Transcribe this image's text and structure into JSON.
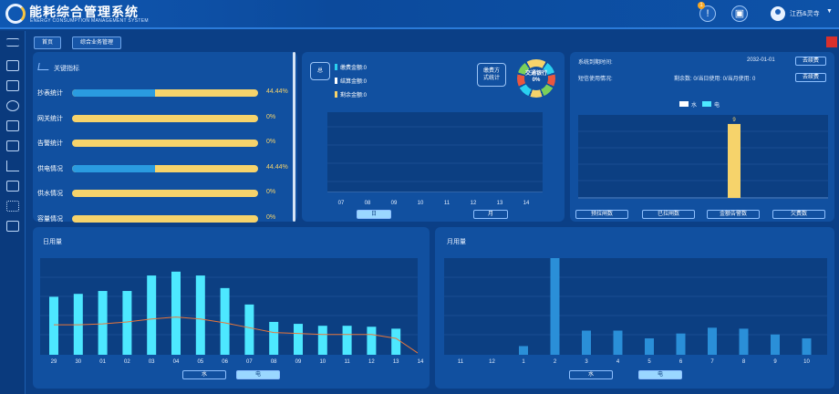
{
  "header": {
    "title": "能耗综合管理系统",
    "subtitle": "ENERGY CONSUMPTION MANAGEMENT SYSTEM",
    "notification_count": "1",
    "user_name": "江西&灵寺",
    "caret": "▼"
  },
  "breadcrumbs": [
    "首页",
    "综合业务管理"
  ],
  "kpi": {
    "title": "关键指标",
    "items": [
      {
        "label": "抄表统计",
        "value": 44.44,
        "pct": "44.44%"
      },
      {
        "label": "网关统计",
        "value": 0,
        "pct": "0%"
      },
      {
        "label": "告警统计",
        "value": 0,
        "pct": "0%"
      },
      {
        "label": "供电情况",
        "value": 44.44,
        "pct": "44.44%"
      },
      {
        "label": "供水情况",
        "value": 0,
        "pct": "0%"
      },
      {
        "label": "容量情况",
        "value": 0,
        "pct": "0%"
      }
    ]
  },
  "fee": {
    "total_label": "总",
    "lines": [
      {
        "text": "缴费金额:0",
        "color": "#2ad0f0"
      },
      {
        "text": "结算金额:0",
        "color": "#ffffff"
      },
      {
        "text": "剩余金额:0",
        "color": "#f6d36b"
      }
    ],
    "mode_label_1": "缴费方",
    "mode_label_2": "式统计",
    "donut_label": "交通银行",
    "donut_value": "0%",
    "x_ticks": [
      "07",
      "08",
      "09",
      "10",
      "11",
      "12",
      "13",
      "14"
    ],
    "tab_day": "日",
    "tab_month": "月"
  },
  "sys": {
    "expire_label": "系统到期时间:",
    "expire_date": "2032-01-01",
    "renew_label": "去续费",
    "sms_label": "短信使用情况:",
    "sms_stats": "剩余数: 0/当日使用: 0/当月使用: 0",
    "sms_renew": "去续费",
    "legend_water": "水",
    "legend_elec": "电",
    "buttons": [
      "预拉闸数",
      "已拉闸数",
      "金额告警数",
      "欠费数"
    ]
  },
  "colors": {
    "accent_cyan": "#4de8ff",
    "accent_yellow": "#f6d36b",
    "line_orange": "#e8763a",
    "month_bar": "#2a8fd8"
  },
  "chart_data": [
    {
      "type": "bar",
      "title": "",
      "categories": [
        "预拉闸数",
        "已拉闸数",
        "金额告警数",
        "欠费数"
      ],
      "series": [
        {
          "name": "电",
          "values": [
            0,
            0,
            9,
            0
          ]
        }
      ],
      "data_labels": [
        "9"
      ]
    },
    {
      "type": "bar",
      "title": "日用量",
      "categories": [
        "29",
        "30",
        "01",
        "02",
        "03",
        "04",
        "05",
        "06",
        "07",
        "08",
        "09",
        "10",
        "11",
        "12",
        "13",
        "14"
      ],
      "series": [
        {
          "name": "电",
          "values": [
            60,
            63,
            66,
            66,
            82,
            86,
            82,
            69,
            52,
            34,
            32,
            30,
            30,
            29,
            27,
            0
          ]
        },
        {
          "name": "趋势",
          "values": [
            31,
            31,
            32,
            34,
            37,
            39,
            37,
            33,
            28,
            23,
            22,
            21,
            21,
            21,
            17,
            0
          ]
        }
      ],
      "tab_water": "水",
      "tab_elec": "电"
    },
    {
      "type": "bar",
      "title": "月用量",
      "categories": [
        "11",
        "12",
        "1",
        "2",
        "3",
        "4",
        "5",
        "6",
        "7",
        "8",
        "9",
        "10"
      ],
      "series": [
        {
          "name": "电",
          "values": [
            0,
            0,
            9,
            100,
            25,
            25,
            17,
            22,
            28,
            27,
            21,
            17
          ]
        }
      ],
      "tab_water": "水",
      "tab_elec": "电"
    }
  ]
}
